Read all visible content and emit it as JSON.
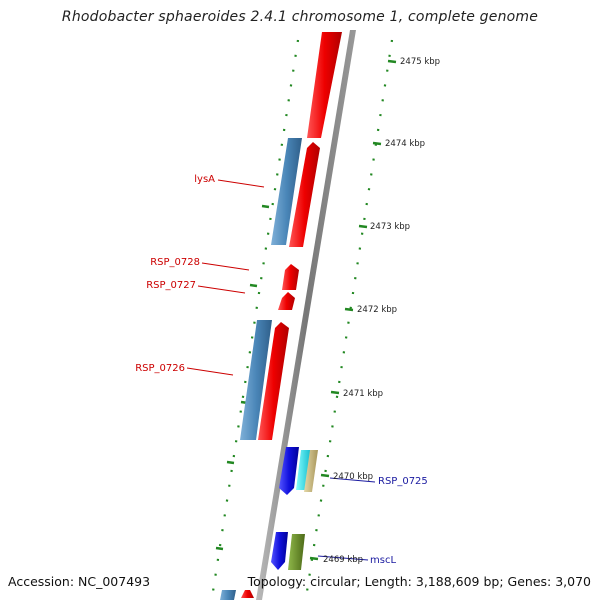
{
  "title": "Rhodobacter sphaeroides 2.4.1 chromosome 1, complete genome",
  "footer": {
    "accession": "Accession: NC_007493",
    "summary": "Topology: circular; Length: 3,188,609 bp; Genes: 3,070"
  },
  "ticks": [
    {
      "label": "2475 kbp"
    },
    {
      "label": "2474 kbp"
    },
    {
      "label": "2473 kbp"
    },
    {
      "label": "2472 kbp"
    },
    {
      "label": "2471 kbp"
    },
    {
      "label": "2470 kbp"
    },
    {
      "label": "2469 kbp"
    }
  ],
  "gene_labels": [
    {
      "text": "lysA",
      "color": "#cc0000"
    },
    {
      "text": "RSP_0728",
      "color": "#cc0000"
    },
    {
      "text": "RSP_0727",
      "color": "#cc0000"
    },
    {
      "text": "RSP_0726",
      "color": "#cc0000"
    },
    {
      "text": "RSP_0725",
      "color": "#1a1aa0"
    },
    {
      "text": "mscL",
      "color": "#1a1aa0"
    }
  ],
  "colors": {
    "forward_gene": "#ee1111",
    "reverse_gene": "#4a86b8",
    "blue_gene": "#1111dd",
    "cyan_gene": "#22dddd",
    "tan_gene": "#c8b87a",
    "olive_gene": "#6b8e23",
    "backbone": "#888888",
    "tick_marks": "#228822"
  }
}
